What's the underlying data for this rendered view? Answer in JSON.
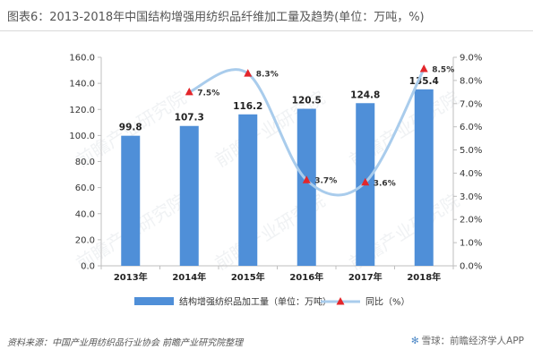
{
  "title": "图表6：2013-2018年中国结构增强用纺织品纤维加工量及趋势(单位：万吨，%)",
  "source": "资料来源：中国产业用纺织品行业协会 前瞻产业研究院整理",
  "brand": "雪球：前瞻经济学人APP",
  "watermark": "前瞻产业研究院",
  "colors": {
    "bar": "#4f8fd8",
    "line": "#a9ccec",
    "marker": "#e3262b"
  },
  "chart_data": {
    "type": "bar",
    "categories": [
      "2013年",
      "2014年",
      "2015年",
      "2016年",
      "2017年",
      "2018年"
    ],
    "series": [
      {
        "name": "结构增强纺织品加工量（单位：万吨）",
        "type": "bar",
        "axis": "left",
        "values": [
          99.8,
          107.3,
          116.2,
          120.5,
          124.8,
          135.4
        ],
        "labels": [
          "99.8",
          "107.3",
          "116.2",
          "120.5",
          "124.8",
          "135.4"
        ]
      },
      {
        "name": "同比（%）",
        "type": "line",
        "axis": "right",
        "smooth": true,
        "marker": "triangle",
        "values": [
          null,
          7.5,
          8.3,
          3.7,
          3.6,
          8.5
        ],
        "labels": [
          "",
          "7.5%",
          "8.3%",
          "3.7%",
          "3.6%",
          "8.5%"
        ]
      }
    ],
    "y_left": {
      "min": 0,
      "max": 160,
      "step": 20,
      "ticks": [
        "0.0",
        "20.0",
        "40.0",
        "60.0",
        "80.0",
        "100.0",
        "120.0",
        "140.0",
        "160.0"
      ]
    },
    "y_right": {
      "min": 0,
      "max": 9,
      "step": 1,
      "ticks": [
        "0.0%",
        "1.0%",
        "2.0%",
        "3.0%",
        "4.0%",
        "5.0%",
        "6.0%",
        "7.0%",
        "8.0%",
        "9.0%"
      ]
    },
    "grid": false,
    "legend_position": "bottom"
  }
}
